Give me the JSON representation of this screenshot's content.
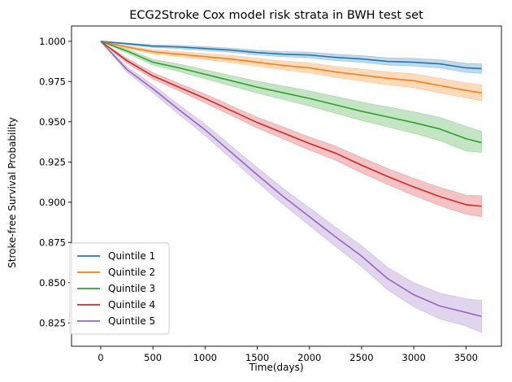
{
  "chart_data": {
    "type": "line",
    "title": "ECG2Stroke Cox model risk strata in BWH test set",
    "xlabel": "Time(days)",
    "ylabel": "Stroke-free Survival Probability",
    "xlim": [
      -280,
      3840
    ],
    "ylim": [
      0.8105,
      1.0095
    ],
    "xticks": [
      0,
      500,
      1000,
      1500,
      2000,
      2500,
      3000,
      3500
    ],
    "xtick_labels": [
      "0",
      "500",
      "1000",
      "1500",
      "2000",
      "2500",
      "3000",
      "3500"
    ],
    "yticks": [
      0.825,
      0.85,
      0.875,
      0.9,
      0.925,
      0.95,
      0.975,
      1.0
    ],
    "ytick_labels": [
      "0.825",
      "0.850",
      "0.875",
      "0.900",
      "0.925",
      "0.950",
      "0.975",
      "1.000"
    ],
    "legend_position": "lower-left",
    "x": [
      0,
      250,
      500,
      750,
      1000,
      1250,
      1500,
      1750,
      2000,
      2250,
      2500,
      2750,
      3000,
      3250,
      3500,
      3650
    ],
    "series": [
      {
        "name": "Quintile 1",
        "color": "#1f77b4",
        "values": [
          1.0,
          0.9985,
          0.997,
          0.9965,
          0.9955,
          0.9945,
          0.993,
          0.992,
          0.9915,
          0.99,
          0.989,
          0.9875,
          0.987,
          0.986,
          0.9835,
          0.983
        ],
        "ci_lower": [
          1.0,
          0.998,
          0.9962,
          0.9955,
          0.9943,
          0.9932,
          0.9915,
          0.9904,
          0.9897,
          0.988,
          0.9869,
          0.9852,
          0.9846,
          0.9834,
          0.9807,
          0.98
        ],
        "ci_upper": [
          1.0,
          0.999,
          0.9978,
          0.9975,
          0.9967,
          0.9958,
          0.9945,
          0.9936,
          0.9933,
          0.992,
          0.9911,
          0.9898,
          0.9894,
          0.9886,
          0.9863,
          0.986
        ]
      },
      {
        "name": "Quintile 2",
        "color": "#ff7f0e",
        "values": [
          1.0,
          0.9965,
          0.9935,
          0.992,
          0.9905,
          0.989,
          0.987,
          0.985,
          0.9835,
          0.981,
          0.979,
          0.977,
          0.9755,
          0.9725,
          0.9695,
          0.968
        ],
        "ci_lower": [
          1.0,
          0.9957,
          0.9922,
          0.9904,
          0.9886,
          0.9868,
          0.9845,
          0.9822,
          0.9804,
          0.9776,
          0.9753,
          0.973,
          0.9712,
          0.968,
          0.9648,
          0.963
        ],
        "ci_upper": [
          1.0,
          0.9973,
          0.9948,
          0.9936,
          0.9924,
          0.9912,
          0.9895,
          0.9878,
          0.9866,
          0.9844,
          0.9827,
          0.981,
          0.9798,
          0.977,
          0.9742,
          0.973
        ]
      },
      {
        "name": "Quintile 3",
        "color": "#2ca02c",
        "values": [
          1.0,
          0.994,
          0.987,
          0.9835,
          0.9795,
          0.9755,
          0.9715,
          0.968,
          0.9645,
          0.9605,
          0.9565,
          0.953,
          0.9495,
          0.9455,
          0.9395,
          0.937
        ],
        "ci_lower": [
          1.0,
          0.9928,
          0.9852,
          0.9812,
          0.9767,
          0.9723,
          0.9678,
          0.9638,
          0.9598,
          0.9553,
          0.9508,
          0.9468,
          0.9428,
          0.9383,
          0.9318,
          0.931
        ],
        "ci_upper": [
          1.0,
          0.9952,
          0.9888,
          0.9858,
          0.9823,
          0.9787,
          0.9752,
          0.9722,
          0.9692,
          0.9657,
          0.9622,
          0.9592,
          0.9562,
          0.9527,
          0.9472,
          0.944
        ]
      },
      {
        "name": "Quintile 4",
        "color": "#d62728",
        "values": [
          1.0,
          0.988,
          0.9785,
          0.9715,
          0.9645,
          0.957,
          0.9495,
          0.943,
          0.9365,
          0.9305,
          0.923,
          0.916,
          0.9095,
          0.9035,
          0.8985,
          0.8975
        ],
        "ci_lower": [
          1.0,
          0.9865,
          0.9765,
          0.9692,
          0.9618,
          0.954,
          0.9462,
          0.9393,
          0.9325,
          0.9261,
          0.9183,
          0.911,
          0.9042,
          0.8978,
          0.8926,
          0.891
        ],
        "ci_upper": [
          1.0,
          0.9895,
          0.9805,
          0.9738,
          0.9672,
          0.96,
          0.9528,
          0.9467,
          0.9405,
          0.9349,
          0.9277,
          0.921,
          0.9148,
          0.9092,
          0.9044,
          0.904
        ]
      },
      {
        "name": "Quintile 5",
        "color": "#9467bd",
        "values": [
          1.0,
          0.9825,
          0.9705,
          0.9575,
          0.945,
          0.931,
          0.917,
          0.9035,
          0.891,
          0.8785,
          0.8665,
          0.8525,
          0.8425,
          0.8355,
          0.8315,
          0.829
        ],
        "ci_lower": [
          1.0,
          0.9808,
          0.968,
          0.9545,
          0.9415,
          0.927,
          0.9125,
          0.8985,
          0.8855,
          0.8725,
          0.86,
          0.8455,
          0.835,
          0.8275,
          0.823,
          0.819
        ],
        "ci_upper": [
          1.0,
          0.9842,
          0.973,
          0.9605,
          0.9485,
          0.935,
          0.9215,
          0.9085,
          0.8965,
          0.8845,
          0.873,
          0.8595,
          0.85,
          0.8435,
          0.84,
          0.839
        ]
      }
    ]
  }
}
